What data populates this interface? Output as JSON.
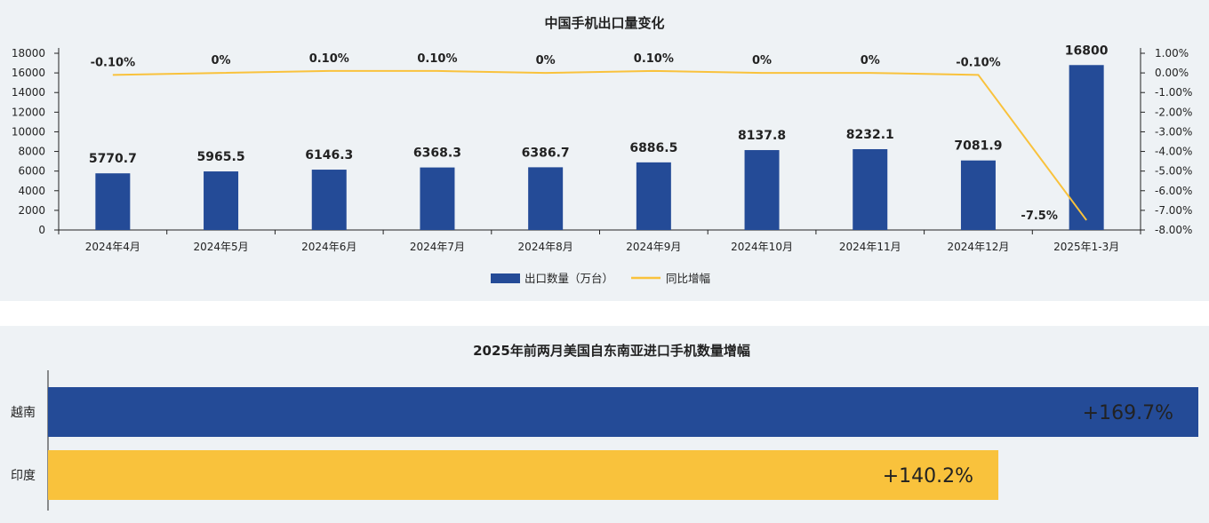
{
  "chart_data": [
    {
      "type": "bar",
      "title": "中国手机出口量变化",
      "categories": [
        "2024年4月",
        "2024年5月",
        "2024年6月",
        "2024年7月",
        "2024年8月",
        "2024年9月",
        "2024年10月",
        "2024年11月",
        "2024年12月",
        "2025年1-3月"
      ],
      "series": [
        {
          "name": "出口数量（万台）",
          "type": "bar",
          "axis": "left",
          "color": "#244b97",
          "values": [
            5770.7,
            5965.5,
            6146.3,
            6368.3,
            6386.7,
            6886.5,
            8137.8,
            8232.1,
            7081.9,
            16800
          ],
          "labels": [
            "5770.7",
            "5965.5",
            "6146.3",
            "6368.3",
            "6386.7",
            "6886.5",
            "8137.8",
            "8232.1",
            "7081.9",
            "16800"
          ]
        },
        {
          "name": "同比增幅",
          "type": "line",
          "axis": "right",
          "color": "#f9c23c",
          "values": [
            -0.1,
            0,
            0.1,
            0.1,
            0,
            0.1,
            0,
            0,
            -0.1,
            -7.5
          ],
          "labels": [
            "-0.10%",
            "0%",
            "0.10%",
            "0.10%",
            "0%",
            "0.10%",
            "0%",
            "0%",
            "-0.10%",
            "-7.5%"
          ]
        }
      ],
      "y_left": {
        "ylim": [
          0,
          18000
        ],
        "ticks": [
          "0",
          "2000",
          "4000",
          "6000",
          "8000",
          "10000",
          "12000",
          "14000",
          "16000",
          "18000"
        ]
      },
      "y_right": {
        "ylim": [
          -8,
          1
        ],
        "ticks": [
          "-8.00%",
          "-7.00%",
          "-6.00%",
          "-5.00%",
          "-4.00%",
          "-3.00%",
          "-2.00%",
          "-1.00%",
          "0.00%",
          "1.00%"
        ]
      },
      "legend": "bottom-center",
      "grid": false
    },
    {
      "type": "bar",
      "orientation": "horizontal",
      "title": "2025年前两月美国自东南亚进口手机数量增幅",
      "categories": [
        "越南",
        "印度"
      ],
      "values": [
        169.7,
        140.2
      ],
      "labels": [
        "+169.7%",
        "+140.2%"
      ],
      "colors": [
        "#244b97",
        "#f9c23c"
      ],
      "label_colors": [
        "#ffffff",
        "#222222"
      ],
      "grid": false
    }
  ]
}
